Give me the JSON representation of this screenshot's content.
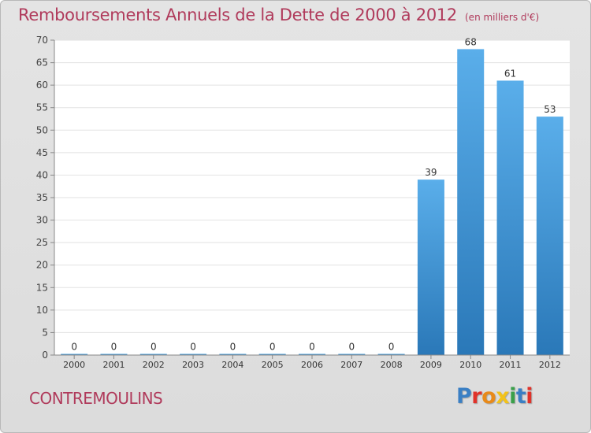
{
  "header": {
    "title": "Remboursements Annuels de la Dette de 2000 à 2012",
    "unit": "(en milliers d'€)"
  },
  "footer": {
    "commune": "CONTREMOULINS",
    "logo": "Proxiti"
  },
  "colors": {
    "title": "#b03a5b",
    "bar_top": "#5aaeea",
    "bar_bottom": "#2a78b8",
    "logo": [
      "#3a7fc4",
      "#e0322a",
      "#e88a1a",
      "#f2c21a",
      "#3aa04a",
      "#3a7fc4",
      "#e0322a"
    ]
  },
  "chart_data": {
    "type": "bar",
    "categories": [
      "2000",
      "2001",
      "2002",
      "2003",
      "2004",
      "2005",
      "2006",
      "2007",
      "2008",
      "2009",
      "2010",
      "2011",
      "2012"
    ],
    "values": [
      0,
      0,
      0,
      0,
      0,
      0,
      0,
      0,
      0,
      39,
      68,
      61,
      53
    ],
    "ylim": [
      0,
      70
    ],
    "yticks": [
      0,
      5,
      10,
      15,
      20,
      25,
      30,
      35,
      40,
      45,
      50,
      55,
      60,
      65,
      70
    ],
    "grid": true
  }
}
